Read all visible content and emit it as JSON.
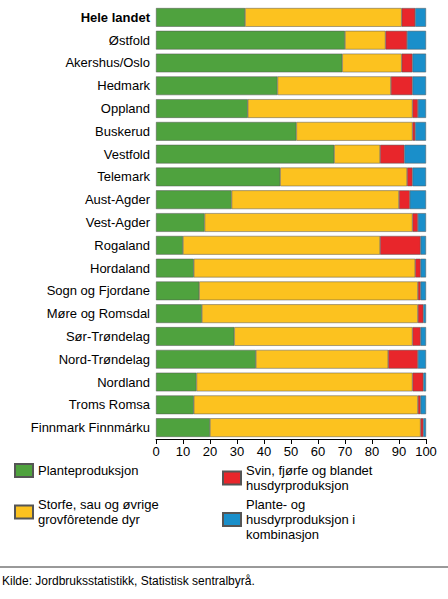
{
  "chart_data": {
    "type": "bar",
    "orientation": "horizontal",
    "stacked": true,
    "grid": false,
    "categories": [
      "Hele landet",
      "Østfold",
      "Akershus/Oslo",
      "Hedmark",
      "Oppland",
      "Buskerud",
      "Vestfold",
      "Telemark",
      "Aust-Agder",
      "Vest-Agder",
      "Rogaland",
      "Hordaland",
      "Sogn og Fjordane",
      "Møre og Romsdal",
      "Sør-Trøndelag",
      "Nord-Trøndelag",
      "Nordland",
      "Troms Romsa",
      "Finnmark Finnmárku"
    ],
    "series": [
      {
        "name": "Planteproduksjon",
        "color": "#4fa23e",
        "values": [
          33,
          70,
          69,
          45,
          34,
          52,
          66,
          46,
          28,
          18,
          10,
          14,
          16,
          17,
          29,
          37,
          15,
          14,
          20
        ]
      },
      {
        "name": "Storfe, sau og øvrige grovfôretende dyr",
        "color": "#fcc21f",
        "values": [
          58,
          15,
          22,
          42,
          61,
          43,
          17,
          47,
          62,
          77,
          73,
          82,
          81,
          80,
          66,
          49,
          80,
          83,
          78
        ]
      },
      {
        "name": "Svin, fjørfe og blandet husdyrproduksjon",
        "color": "#e8262b",
        "values": [
          5,
          8,
          4,
          8,
          2,
          1,
          9,
          2,
          4,
          2,
          15,
          2,
          1,
          2,
          3,
          11,
          4,
          1,
          1
        ]
      },
      {
        "name": "Plante- og husdyrproduksjon i kombinasjon",
        "color": "#1a8fca",
        "values": [
          4,
          7,
          5,
          5,
          3,
          4,
          8,
          5,
          6,
          3,
          2,
          2,
          2,
          1,
          2,
          3,
          1,
          2,
          1
        ]
      }
    ],
    "xlim": [
      0,
      100
    ],
    "xticks": [
      0,
      10,
      20,
      30,
      40,
      50,
      60,
      70,
      80,
      90,
      100
    ],
    "source": "Kilde: Jordbruksstatistikk, Statistisk sentralbyrå."
  }
}
